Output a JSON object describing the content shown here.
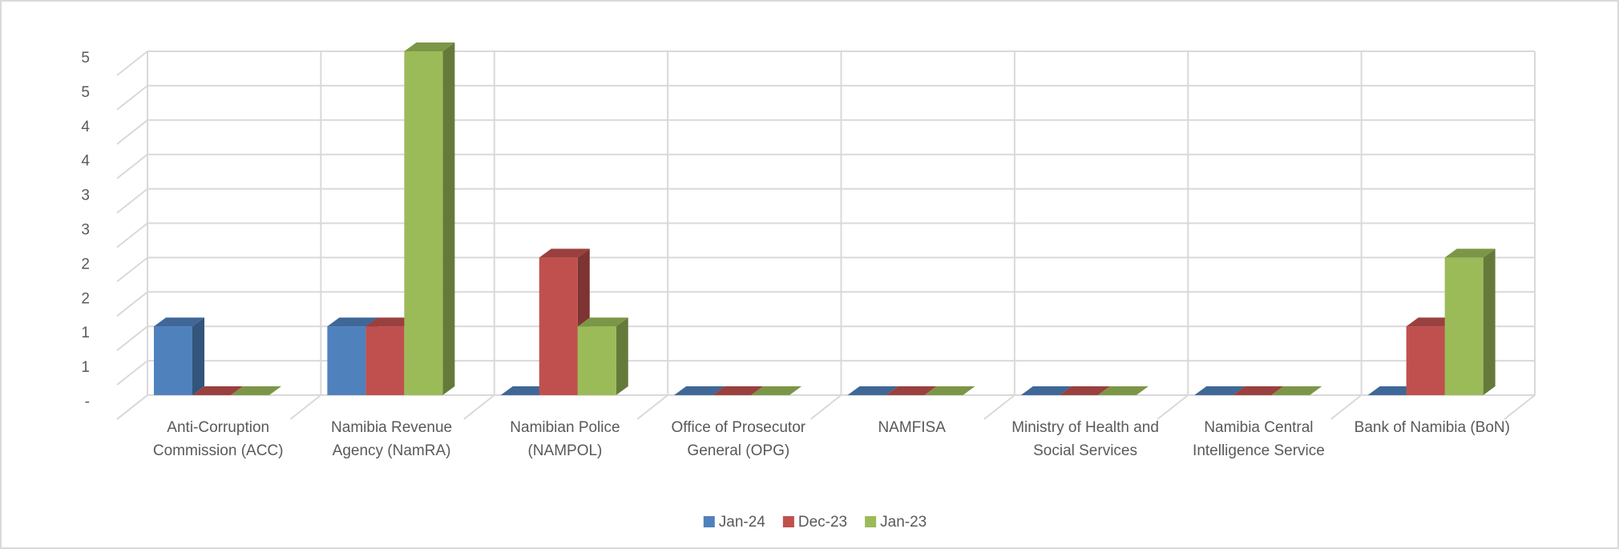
{
  "chart_data": {
    "type": "bar3d",
    "categories": [
      "Anti-Corruption Commission (ACC)",
      "Namibia Revenue Agency (NamRA)",
      "Namibian Police (NAMPOL)",
      "Office of Prosecutor General (OPG)",
      "NAMFISA",
      "Ministry of Health and Social Services",
      "Namibia Central Intelligence Service",
      "Bank of Namibia (BoN)"
    ],
    "series": [
      {
        "name": "Jan-24",
        "color": "#4f81bd",
        "values": [
          1,
          1,
          0,
          0,
          0,
          0,
          0,
          0
        ]
      },
      {
        "name": "Dec-23",
        "color": "#c0504d",
        "values": [
          0,
          1,
          2,
          0,
          0,
          0,
          0,
          1
        ]
      },
      {
        "name": "Jan-23",
        "color": "#9bbb59",
        "values": [
          0,
          5,
          1,
          0,
          0,
          0,
          0,
          2
        ]
      }
    ],
    "ylim": [
      0,
      5
    ],
    "yticks": [
      {
        "value": 0,
        "label": "-"
      },
      {
        "value": 0.5,
        "label": "1"
      },
      1,
      {
        "value": 1.5,
        "label": "2"
      },
      2,
      {
        "value": 2.5,
        "label": "3"
      },
      3,
      {
        "value": 3.5,
        "label": "4"
      },
      4,
      {
        "value": 4.5,
        "label": "5"
      },
      5
    ],
    "grid": true,
    "legend": "bottom"
  }
}
